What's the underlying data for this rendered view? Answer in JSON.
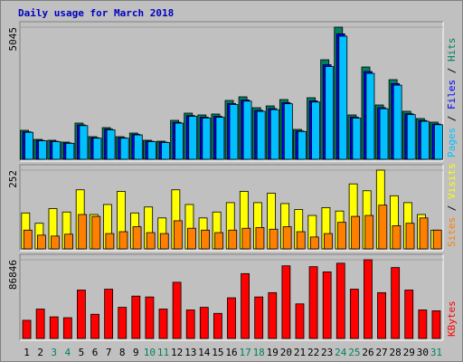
{
  "chart_data": [
    {
      "type": "bar",
      "title": "Daily usage for March 2018",
      "ylim": [
        0,
        5045
      ],
      "yticks": [
        5045
      ],
      "legend_separator": " / ",
      "series": [
        {
          "name": "Hits",
          "color": "#008060",
          "values": [
            1106,
            760,
            726,
            656,
            1382,
            864,
            1209,
            864,
            1002,
            726,
            691,
            1486,
            1762,
            1693,
            1728,
            2246,
            2384,
            1969,
            2038,
            2280,
            1140,
            2349,
            3800,
            5045,
            1693,
            3524,
            2073,
            3040,
            1831,
            1555,
            1417
          ]
        },
        {
          "name": "Files",
          "color": "#0000ff",
          "values": [
            1050,
            720,
            690,
            620,
            1310,
            820,
            1150,
            820,
            950,
            690,
            655,
            1410,
            1670,
            1610,
            1640,
            2130,
            2265,
            1870,
            1935,
            2165,
            1080,
            2230,
            3610,
            4790,
            1610,
            3350,
            1970,
            2890,
            1740,
            1480,
            1345
          ]
        },
        {
          "name": "Pages",
          "color": "#00c0ff",
          "values": [
            1030,
            705,
            675,
            610,
            1285,
            805,
            1125,
            805,
            930,
            675,
            640,
            1380,
            1640,
            1575,
            1605,
            2090,
            2220,
            1830,
            1895,
            2120,
            1060,
            2185,
            3540,
            4700,
            1575,
            3280,
            1930,
            2830,
            1705,
            1450,
            1320
          ]
        }
      ]
    },
    {
      "type": "bar",
      "ylim": [
        0,
        252
      ],
      "yticks": [
        252
      ],
      "legend_separator": " / ",
      "series": [
        {
          "name": "Visits",
          "color": "#ffff00",
          "values": [
            115,
            82,
            129,
            118,
            189,
            110,
            142,
            184,
            115,
            134,
            99,
            189,
            142,
            99,
            118,
            148,
            184,
            148,
            178,
            145,
            126,
            107,
            132,
            121,
            208,
            186,
            252,
            170,
            148,
            110,
            60
          ]
        },
        {
          "name": "Sites",
          "color": "#ff8000",
          "values": [
            60,
            44,
            41,
            47,
            110,
            104,
            49,
            55,
            71,
            52,
            49,
            90,
            66,
            60,
            52,
            60,
            66,
            68,
            63,
            71,
            55,
            38,
            49,
            85,
            104,
            107,
            140,
            74,
            82,
            99,
            60
          ]
        }
      ]
    },
    {
      "type": "bar",
      "ylim": [
        0,
        86846
      ],
      "yticks": [
        86846
      ],
      "categories": [
        "1",
        "2",
        "3",
        "4",
        "5",
        "6",
        "7",
        "8",
        "9",
        "10",
        "11",
        "12",
        "13",
        "14",
        "15",
        "16",
        "17",
        "18",
        "19",
        "20",
        "21",
        "22",
        "23",
        "24",
        "25",
        "26",
        "27",
        "28",
        "29",
        "30",
        "31"
      ],
      "category_colors": [
        "#000000",
        "#000000",
        "#008060",
        "#008060",
        "#000000",
        "#000000",
        "#000000",
        "#000000",
        "#000000",
        "#008060",
        "#008060",
        "#000000",
        "#000000",
        "#000000",
        "#000000",
        "#000000",
        "#008060",
        "#008060",
        "#000000",
        "#000000",
        "#000000",
        "#000000",
        "#000000",
        "#008060",
        "#008060",
        "#000000",
        "#000000",
        "#000000",
        "#000000",
        "#000000",
        "#008060"
      ],
      "series": [
        {
          "name": "KBytes",
          "color": "#ff0000",
          "values": [
            20035,
            32436,
            23850,
            22896,
            53424,
            26712,
            54378,
            34344,
            46746,
            45792,
            32436,
            62010,
            31482,
            34344,
            27666,
            44838,
            71550,
            45792,
            50562,
            80136,
            38160,
            79182,
            73458,
            82998,
            54378,
            86846,
            50562,
            78228,
            53424,
            31482,
            30528
          ]
        }
      ]
    }
  ]
}
